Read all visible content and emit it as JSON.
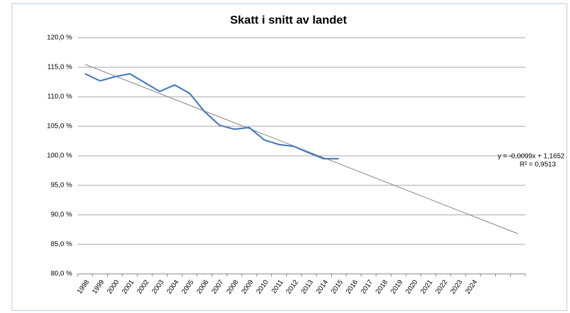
{
  "chart_data": {
    "type": "line",
    "title": "Skatt i snitt av landet",
    "categories": [
      "1998",
      "1999",
      "2000",
      "2001",
      "2002",
      "2003",
      "2004",
      "2005",
      "2006",
      "2007",
      "2008",
      "2009",
      "2010",
      "2011",
      "2012",
      "2013",
      "2014",
      "2015",
      "2016",
      "2017",
      "2018",
      "2019",
      "2020",
      "2021",
      "2022",
      "2023",
      "2024",
      null,
      null,
      null
    ],
    "series": [
      {
        "color": "#4a7ebb",
        "values": [
          113.9,
          112.7,
          113.4,
          113.9,
          112.4,
          110.9,
          112.0,
          110.6,
          107.5,
          105.2,
          104.5,
          104.8,
          102.7,
          101.9,
          101.6,
          100.5,
          99.5,
          99.5,
          null,
          null,
          null,
          null,
          null,
          null,
          null,
          null,
          null,
          null,
          null,
          null
        ]
      }
    ],
    "trendline": {
      "color": "#7f7f7f",
      "from": 115.5,
      "to": 86.8,
      "equation": "y = -0,0099x + 1,1652",
      "r_squared": "R² = 0,9513"
    },
    "ylim": [
      80,
      120
    ],
    "yticks": [
      {
        "value": 80,
        "label": "80,0 %"
      },
      {
        "value": 85,
        "label": "85,0 %"
      },
      {
        "value": 90,
        "label": "90,0 %"
      },
      {
        "value": 95,
        "label": "95,0 %"
      },
      {
        "value": 100,
        "label": "100,0 %"
      },
      {
        "value": 105,
        "label": "105,0 %"
      },
      {
        "value": 110,
        "label": "110,0 %"
      },
      {
        "value": 115,
        "label": "115,0 %"
      },
      {
        "value": 120,
        "label": "120,0 %"
      }
    ],
    "grid": true
  }
}
